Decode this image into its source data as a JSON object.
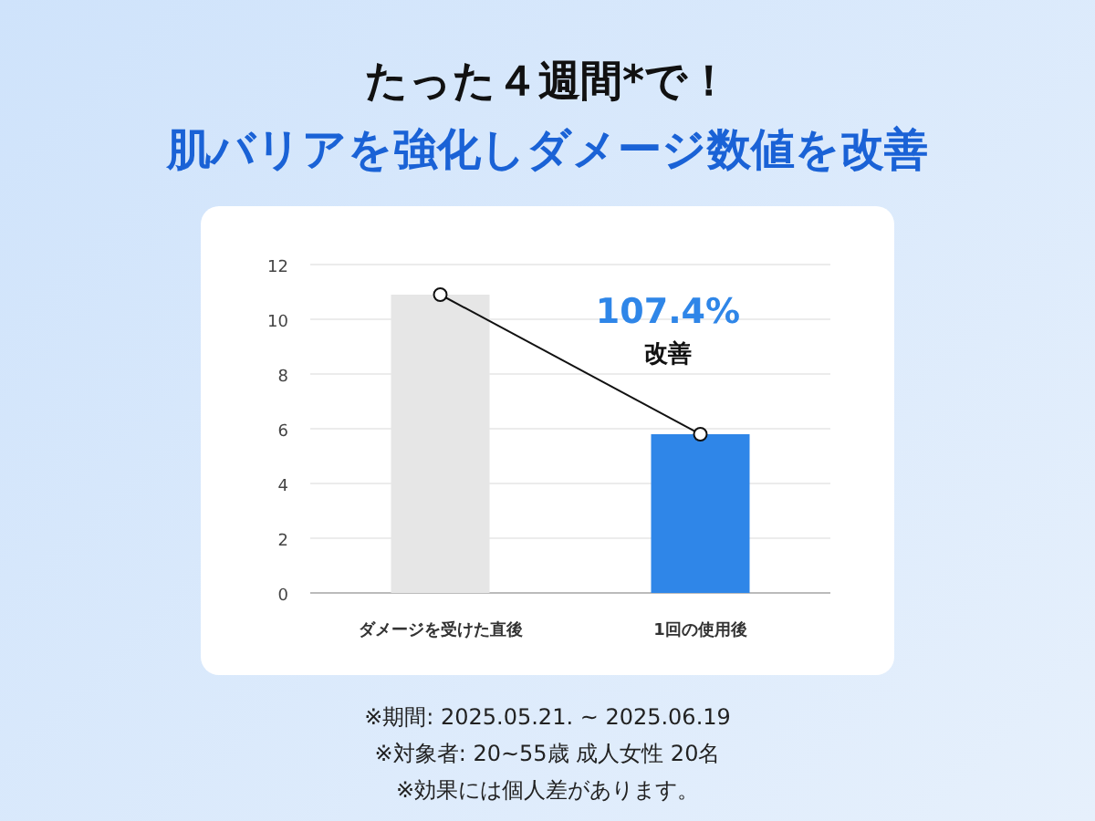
{
  "chart_data": {
    "type": "bar",
    "title": "たった４週間*で！",
    "subtitle": "肌バリアを強化しダメージ数値を改善",
    "categories": [
      "ダメージを受けた直後",
      "1回の使用後"
    ],
    "series": [
      {
        "colors": [
          "#e6e6e6",
          "#2f86e8"
        ],
        "values": [
          10.9,
          5.8
        ]
      },
      {
        "type": "line",
        "color": "#111111",
        "values": [
          10.9,
          5.8
        ]
      }
    ],
    "marker": "circle",
    "ylim": [
      0,
      12
    ],
    "yticks": [
      0,
      2,
      4,
      6,
      8,
      10,
      12
    ],
    "grid": "y",
    "annotations": [
      "107.4%",
      "改善",
      "※期間: 2025.05.21. ~ 2025.06.19",
      "※対象者: 20~55歳 成人女性 20名",
      "※効果には個人差があります。"
    ]
  }
}
